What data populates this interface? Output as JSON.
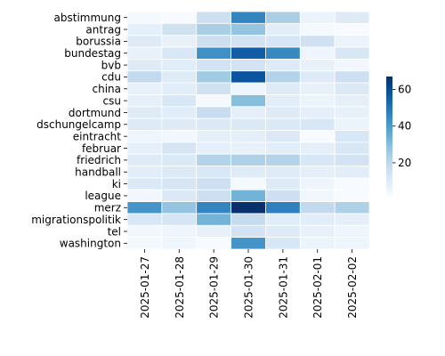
{
  "chart_data": {
    "type": "heatmap",
    "title": "",
    "xlabel": "",
    "ylabel": "",
    "rows": [
      "abstimmung",
      "antrag",
      "borussia",
      "bundestag",
      "bvb",
      "cdu",
      "china",
      "csu",
      "dortmund",
      "dschungelcamp",
      "eintracht",
      "februar",
      "friedrich",
      "handball",
      "ki",
      "league",
      "merz",
      "migrationspolitik",
      "tel",
      "washington"
    ],
    "columns": [
      "2025-01-27",
      "2025-01-28",
      "2025-01-29",
      "2025-01-30",
      "2025-01-31",
      "2025-02-01",
      "2025-02-02"
    ],
    "values": [
      [
        3,
        2,
        16,
        46,
        24,
        6,
        10
      ],
      [
        8,
        15,
        24,
        28,
        9,
        3,
        2
      ],
      [
        10,
        7,
        16,
        14,
        12,
        15,
        6
      ],
      [
        7,
        12,
        43,
        56,
        45,
        5,
        12
      ],
      [
        10,
        9,
        14,
        14,
        10,
        7,
        4
      ],
      [
        19,
        10,
        26,
        58,
        22,
        10,
        16
      ],
      [
        7,
        9,
        15,
        5,
        10,
        7,
        11
      ],
      [
        8,
        12,
        3,
        30,
        9,
        6,
        8
      ],
      [
        10,
        9,
        17,
        8,
        10,
        8,
        7
      ],
      [
        10,
        10,
        11,
        11,
        11,
        12,
        6
      ],
      [
        5,
        4,
        8,
        8,
        11,
        1,
        12
      ],
      [
        8,
        13,
        8,
        7,
        9,
        8,
        12
      ],
      [
        10,
        11,
        22,
        23,
        22,
        12,
        14
      ],
      [
        9,
        11,
        12,
        10,
        10,
        8,
        9
      ],
      [
        11,
        13,
        16,
        3,
        10,
        5,
        2
      ],
      [
        4,
        11,
        16,
        33,
        16,
        4,
        2
      ],
      [
        42,
        28,
        46,
        70,
        47,
        19,
        23
      ],
      [
        12,
        13,
        33,
        18,
        9,
        9,
        8
      ],
      [
        4,
        5,
        7,
        14,
        10,
        7,
        5
      ],
      [
        3,
        5,
        2,
        42,
        12,
        6,
        5
      ]
    ],
    "colorbar": {
      "min": 2,
      "max": 67,
      "ticks": [
        20,
        40,
        60
      ],
      "colormap": "Blues"
    },
    "grid": false,
    "legend": "colorbar-right"
  }
}
